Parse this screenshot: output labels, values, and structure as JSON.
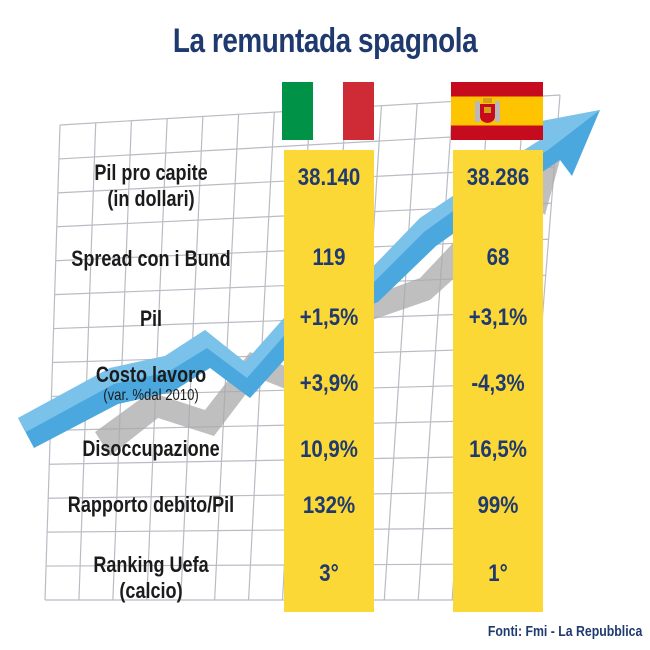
{
  "title": "La remuntada spagnola",
  "source": "Fonti: Fmi - La Repubblica",
  "colors": {
    "title": "#1f3a6e",
    "column": "#fcd837",
    "arrow": "#4aa8de",
    "arrow_shadow": "#a9a9a9",
    "grid": "#b9bcc4",
    "it_green": "#009246",
    "it_white": "#ffffff",
    "it_red": "#ce2b37",
    "es_red": "#c60b1e",
    "es_yellow": "#ffc400"
  },
  "chart_data": {
    "type": "table",
    "columns": [
      {
        "name": "Italia",
        "icon": "italy-flag-icon"
      },
      {
        "name": "Spagna",
        "icon": "spain-flag-icon"
      }
    ],
    "rows": [
      {
        "label": "Pil pro capite",
        "sublabel": "(in dollari)",
        "it": "38.140",
        "es": "38.286"
      },
      {
        "label": "Spread con i Bund",
        "sublabel": "",
        "it": "119",
        "es": "68"
      },
      {
        "label": "Pil",
        "sublabel": "",
        "it": "+1,5%",
        "es": "+3,1%"
      },
      {
        "label": "Costo lavoro",
        "sublabel": "(var. %dal 2010)",
        "it": "+3,9%",
        "es": "-4,3%"
      },
      {
        "label": "Disoccupazione",
        "sublabel": "",
        "it": "10,9%",
        "es": "16,5%"
      },
      {
        "label": "Rapporto debito/Pil",
        "sublabel": "",
        "it": "132%",
        "es": "99%"
      },
      {
        "label": "Ranking Uefa",
        "sublabel": "(calcio)",
        "it": "3°",
        "es": "1°"
      }
    ]
  }
}
